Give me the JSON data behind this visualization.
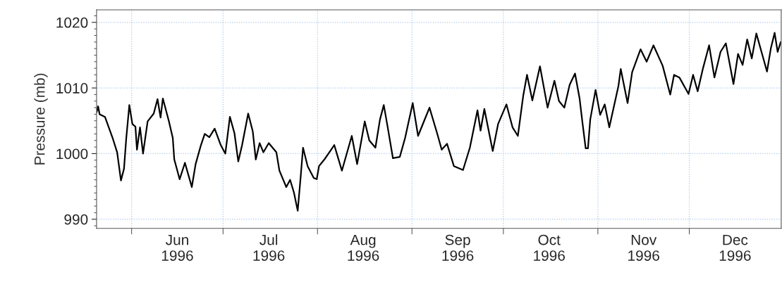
{
  "chart_data": {
    "type": "line",
    "ylabel": "Pressure (mb)",
    "xlim": [
      "1996-05-20T12:00",
      "1996-12-31T04:00"
    ],
    "ylim": [
      988.6,
      1021.9
    ],
    "yticks": [
      990,
      1000,
      1010,
      1020
    ],
    "xticks": [
      {
        "value": "1996-06-01",
        "label": null
      },
      {
        "value": "1996-07-01",
        "label": null
      },
      {
        "value": "1996-08-01",
        "label": null
      },
      {
        "value": "1996-09-01",
        "label": null
      },
      {
        "value": "1996-10-01",
        "label": null
      },
      {
        "value": "1996-11-01",
        "label": null
      },
      {
        "value": "1996-12-01",
        "label": null
      },
      {
        "value": "1996-06-16",
        "label": "Jun\n1996"
      },
      {
        "value": "1996-07-16",
        "label": "Jul\n1996"
      },
      {
        "value": "1996-08-16",
        "label": "Aug\n1996"
      },
      {
        "value": "1996-09-16",
        "label": "Sep\n1996"
      },
      {
        "value": "1996-10-16",
        "label": "Oct\n1996"
      },
      {
        "value": "1996-11-16",
        "label": "Nov\n1996"
      },
      {
        "value": "1996-12-16",
        "label": "Dec\n1996"
      }
    ],
    "grid": true,
    "series": [
      {
        "color": "#000000",
        "x": [
          "1996-05-20T12:00",
          "1996-05-21T00:00",
          "1996-05-21T12:00",
          "1996-05-23T06:00",
          "1996-05-25T18:00",
          "1996-05-27T06:00",
          "1996-05-28T12:00",
          "1996-05-29T12:00",
          "1996-05-30T06:00",
          "1996-05-31T06:00",
          "1996-06-01T06:00",
          "1996-06-02T06:00",
          "1996-06-02T18:00",
          "1996-06-03T18:00",
          "1996-06-04T18:00",
          "1996-06-06T06:00",
          "1996-06-08T06:00",
          "1996-06-09T12:00",
          "1996-06-10T12:00",
          "1996-06-11T06:00",
          "1996-06-13T06:00",
          "1996-06-14T12:00",
          "1996-06-15T00:00",
          "1996-06-16T18:00",
          "1996-06-18T12:00",
          "1996-06-20T18:00",
          "1996-06-22T00:00",
          "1996-06-23T18:00",
          "1996-06-25T00:00",
          "1996-06-26T12:00",
          "1996-06-28T06:00",
          "1996-06-30T06:00",
          "1996-07-01T18:00",
          "1996-07-03T06:00",
          "1996-07-04T18:00",
          "1996-07-06T00:00",
          "1996-07-07T06:00",
          "1996-07-09T06:00",
          "1996-07-10T18:00",
          "1996-07-11T18:00",
          "1996-07-13T00:00",
          "1996-07-14T06:00",
          "1996-07-16T00:00",
          "1996-07-18T12:00",
          "1996-07-19T12:00",
          "1996-07-21T18:00",
          "1996-07-23T00:00",
          "1996-07-24T06:00",
          "1996-07-25T12:00",
          "1996-07-26T12:00",
          "1996-07-27T06:00",
          "1996-07-28T18:00",
          "1996-07-30T18:00",
          "1996-07-31T18:00",
          "1996-08-01T12:00",
          "1996-08-03T06:00",
          "1996-08-06T12:00",
          "1996-08-09T00:00",
          "1996-08-12T06:00",
          "1996-08-14T00:00",
          "1996-08-16T12:00",
          "1996-08-18T00:00",
          "1996-08-20T00:00",
          "1996-08-21T12:00",
          "1996-08-22T18:00",
          "1996-08-24T00:00",
          "1996-08-25T18:00",
          "1996-08-28T00:00",
          "1996-08-29T18:00",
          "1996-09-01T06:00",
          "1996-09-03T00:00",
          "1996-09-05T00:00",
          "1996-09-06T18:00",
          "1996-09-09T06:00",
          "1996-09-10T18:00",
          "1996-09-12T12:00",
          "1996-09-14T18:00",
          "1996-09-17T18:00",
          "1996-09-20T00:00",
          "1996-09-22T12:00",
          "1996-09-23T12:00",
          "1996-09-24T18:00",
          "1996-09-27T12:00",
          "1996-09-29T06:00",
          "1996-10-02T00:00",
          "1996-10-04T00:00",
          "1996-10-05T18:00",
          "1996-10-07T12:00",
          "1996-10-08T18:00",
          "1996-10-10T12:00",
          "1996-10-13T00:00",
          "1996-10-15T12:00",
          "1996-10-17T18:00",
          "1996-10-19T06:00",
          "1996-10-21T00:00",
          "1996-10-22T18:00",
          "1996-10-24T12:00",
          "1996-10-26T00:00",
          "1996-10-27T00:00",
          "1996-10-28T00:00",
          "1996-10-28T18:00",
          "1996-10-29T12:00",
          "1996-10-31T06:00",
          "1996-11-01T18:00",
          "1996-11-03T06:00",
          "1996-11-04T18:00",
          "1996-11-07T18:00",
          "1996-11-08T12:00",
          "1996-11-10T18:00",
          "1996-11-12T06:00",
          "1996-11-15T00:00",
          "1996-11-17T00:00",
          "1996-11-19T06:00",
          "1996-11-22T06:00",
          "1996-11-24T18:00",
          "1996-11-26T00:00",
          "1996-11-27T18:00",
          "1996-11-30T18:00",
          "1996-12-02T06:00",
          "1996-12-03T18:00",
          "1996-12-05T12:00",
          "1996-12-07T12:00",
          "1996-12-09T06:00",
          "1996-12-11T06:00",
          "1996-12-13T00:00",
          "1996-12-15T12:00",
          "1996-12-17T00:00",
          "1996-12-18T12:00",
          "1996-12-20T00:00",
          "1996-12-21T12:00",
          "1996-12-23T00:00",
          "1996-12-25T00:00",
          "1996-12-26T12:00",
          "1996-12-27T18:00",
          "1996-12-29T00:00",
          "1996-12-30T00:00",
          "1996-12-31T00:00"
        ],
        "values": [
          1006.3,
          1007.2,
          1006.0,
          1005.6,
          1002.4,
          1000.2,
          995.9,
          997.7,
          1002.4,
          1007.4,
          1004.5,
          1004.1,
          1000.6,
          1004.0,
          1000.0,
          1004.9,
          1006.1,
          1008.3,
          1005.5,
          1008.4,
          1004.9,
          1002.4,
          999.1,
          996.1,
          998.6,
          994.9,
          998.4,
          1001.3,
          1003.0,
          1002.5,
          1003.8,
          1001.3,
          1000.0,
          1005.6,
          1003.1,
          998.8,
          1001.3,
          1006.1,
          1003.4,
          999.1,
          1001.6,
          1000.2,
          1001.6,
          1000.2,
          997.4,
          994.9,
          996.0,
          994.1,
          991.3,
          996.6,
          1000.9,
          998.1,
          996.3,
          996.1,
          998.1,
          999.1,
          1001.3,
          997.4,
          1002.7,
          998.4,
          1004.9,
          1002.0,
          1000.9,
          1005.2,
          1007.4,
          1004.1,
          999.3,
          999.5,
          1002.4,
          1007.7,
          1002.7,
          1005.0,
          1007.0,
          1003.1,
          1000.6,
          1001.5,
          998.1,
          997.5,
          1000.9,
          1006.6,
          1003.5,
          1006.8,
          1000.4,
          1004.5,
          1007.5,
          1004.0,
          1002.7,
          1008.8,
          1012.0,
          1008.1,
          1013.3,
          1007.0,
          1011.1,
          1008.0,
          1007.0,
          1010.5,
          1012.2,
          1008.4,
          1004.5,
          1000.8,
          1000.8,
          1005.2,
          1009.7,
          1005.9,
          1007.5,
          1004.0,
          1010.3,
          1012.9,
          1007.7,
          1012.4,
          1015.9,
          1014.0,
          1016.5,
          1013.4,
          1009.0,
          1012.0,
          1011.6,
          1009.1,
          1012.0,
          1009.5,
          1013.0,
          1016.5,
          1011.6,
          1015.5,
          1016.8,
          1010.6,
          1015.2,
          1013.5,
          1017.4,
          1014.5,
          1018.3,
          1015.0,
          1012.5,
          1016.0,
          1018.4,
          1015.5,
          1017.0
        ]
      }
    ]
  }
}
